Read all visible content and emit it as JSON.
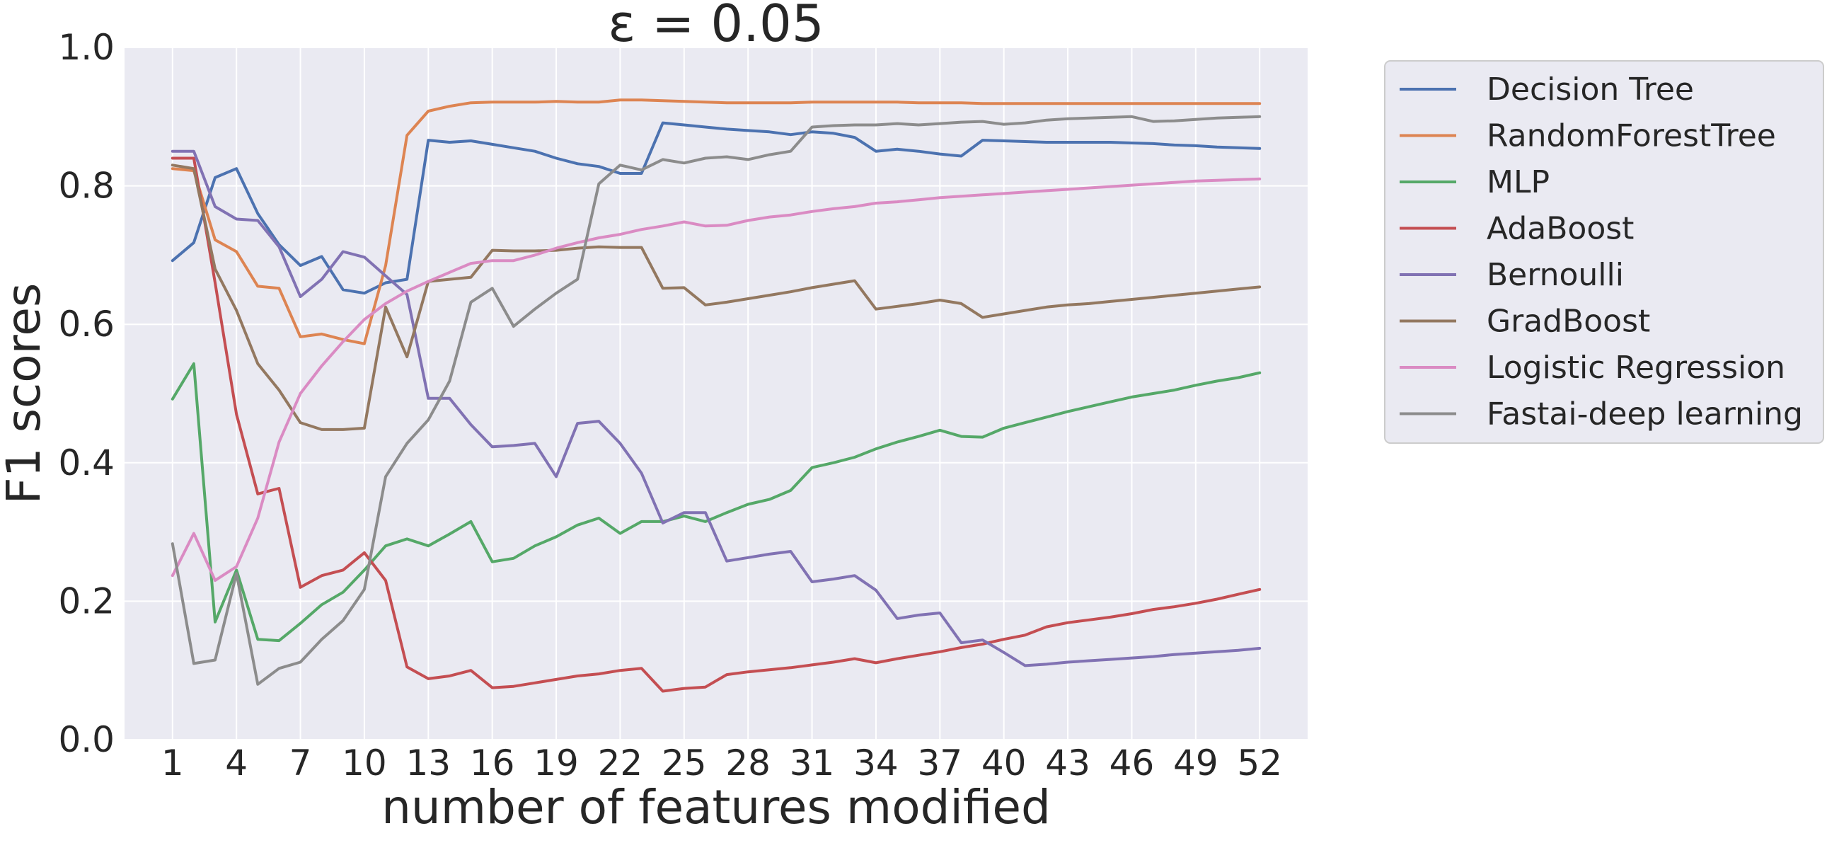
{
  "chart_data": {
    "type": "line",
    "title": "ε = 0.05",
    "xlabel": "number of features modified",
    "ylabel": "F1 scores",
    "xlim": [
      -1.25,
      54.25
    ],
    "ylim": [
      0.0,
      1.0
    ],
    "xticks": [
      1,
      4,
      7,
      10,
      13,
      16,
      19,
      22,
      25,
      28,
      31,
      34,
      37,
      40,
      43,
      46,
      49,
      52
    ],
    "xtick_labels": [
      "1",
      "4",
      "7",
      "10",
      "13",
      "16",
      "19",
      "22",
      "25",
      "28",
      "31",
      "34",
      "37",
      "40",
      "43",
      "46",
      "49",
      "52"
    ],
    "yticks": [
      0.0,
      0.2,
      0.4,
      0.6,
      0.8,
      1.0
    ],
    "ytick_labels": [
      "0.0",
      "0.2",
      "0.4",
      "0.6",
      "0.8",
      "1.0"
    ],
    "grid": true,
    "legend_position": "outside-right-top",
    "x": [
      1,
      2,
      3,
      4,
      5,
      6,
      7,
      8,
      9,
      10,
      11,
      12,
      13,
      14,
      15,
      16,
      17,
      18,
      19,
      20,
      21,
      22,
      23,
      24,
      25,
      26,
      27,
      28,
      29,
      30,
      31,
      32,
      33,
      34,
      35,
      36,
      37,
      38,
      39,
      40,
      41,
      42,
      43,
      44,
      45,
      46,
      47,
      48,
      49,
      50,
      51,
      52
    ],
    "series": [
      {
        "name": "Decision Tree",
        "color": "#4c72b0",
        "values": [
          0.692,
          0.718,
          0.812,
          0.825,
          0.76,
          0.715,
          0.685,
          0.698,
          0.65,
          0.645,
          0.66,
          0.665,
          0.866,
          0.863,
          0.865,
          0.86,
          0.855,
          0.85,
          0.84,
          0.832,
          0.828,
          0.818,
          0.818,
          0.891,
          0.888,
          0.885,
          0.882,
          0.88,
          0.878,
          0.874,
          0.878,
          0.876,
          0.87,
          0.85,
          0.853,
          0.85,
          0.846,
          0.843,
          0.866,
          0.865,
          0.864,
          0.863,
          0.863,
          0.863,
          0.863,
          0.862,
          0.861,
          0.859,
          0.858,
          0.856,
          0.855,
          0.854
        ]
      },
      {
        "name": "RandomForestTree",
        "color": "#dd8452",
        "values": [
          0.825,
          0.822,
          0.722,
          0.705,
          0.655,
          0.652,
          0.582,
          0.586,
          0.578,
          0.572,
          0.685,
          0.873,
          0.908,
          0.915,
          0.92,
          0.921,
          0.921,
          0.921,
          0.922,
          0.921,
          0.921,
          0.924,
          0.924,
          0.923,
          0.922,
          0.921,
          0.92,
          0.92,
          0.92,
          0.92,
          0.921,
          0.921,
          0.921,
          0.921,
          0.921,
          0.92,
          0.92,
          0.92,
          0.919,
          0.919,
          0.919,
          0.919,
          0.919,
          0.919,
          0.919,
          0.919,
          0.919,
          0.919,
          0.919,
          0.919,
          0.919,
          0.919
        ]
      },
      {
        "name": "MLP",
        "color": "#55a868",
        "values": [
          0.492,
          0.543,
          0.17,
          0.245,
          0.145,
          0.143,
          0.168,
          0.195,
          0.213,
          0.245,
          0.28,
          0.29,
          0.28,
          0.297,
          0.315,
          0.257,
          0.262,
          0.28,
          0.293,
          0.31,
          0.32,
          0.298,
          0.315,
          0.315,
          0.323,
          0.315,
          0.328,
          0.34,
          0.347,
          0.36,
          0.393,
          0.4,
          0.408,
          0.42,
          0.43,
          0.438,
          0.447,
          0.438,
          0.437,
          0.45,
          0.458,
          0.466,
          0.474,
          0.481,
          0.488,
          0.495,
          0.5,
          0.505,
          0.512,
          0.518,
          0.523,
          0.53
        ]
      },
      {
        "name": "AdaBoost",
        "color": "#c44e52",
        "values": [
          0.84,
          0.84,
          0.66,
          0.47,
          0.355,
          0.363,
          0.22,
          0.237,
          0.245,
          0.27,
          0.23,
          0.105,
          0.088,
          0.092,
          0.1,
          0.075,
          0.077,
          0.082,
          0.087,
          0.092,
          0.095,
          0.1,
          0.103,
          0.07,
          0.074,
          0.076,
          0.094,
          0.098,
          0.101,
          0.104,
          0.108,
          0.112,
          0.117,
          0.111,
          0.117,
          0.122,
          0.127,
          0.133,
          0.138,
          0.145,
          0.151,
          0.163,
          0.169,
          0.173,
          0.177,
          0.182,
          0.188,
          0.192,
          0.197,
          0.203,
          0.21,
          0.217
        ]
      },
      {
        "name": "Bernoulli",
        "color": "#8172b3",
        "values": [
          0.85,
          0.85,
          0.77,
          0.752,
          0.75,
          0.712,
          0.64,
          0.665,
          0.705,
          0.697,
          0.67,
          0.643,
          0.493,
          0.493,
          0.455,
          0.423,
          0.425,
          0.428,
          0.38,
          0.457,
          0.46,
          0.428,
          0.385,
          0.313,
          0.328,
          0.328,
          0.258,
          0.263,
          0.268,
          0.272,
          0.228,
          0.232,
          0.237,
          0.216,
          0.175,
          0.18,
          0.183,
          0.14,
          0.144,
          0.126,
          0.107,
          0.109,
          0.112,
          0.114,
          0.116,
          0.118,
          0.12,
          0.123,
          0.125,
          0.127,
          0.129,
          0.132
        ]
      },
      {
        "name": "GradBoost",
        "color": "#937860",
        "values": [
          0.83,
          0.825,
          0.68,
          0.62,
          0.543,
          0.505,
          0.458,
          0.448,
          0.448,
          0.45,
          0.625,
          0.553,
          0.662,
          0.665,
          0.668,
          0.707,
          0.706,
          0.706,
          0.707,
          0.71,
          0.712,
          0.711,
          0.711,
          0.652,
          0.653,
          0.628,
          0.632,
          0.637,
          0.642,
          0.647,
          0.653,
          0.658,
          0.663,
          0.622,
          0.626,
          0.63,
          0.635,
          0.63,
          0.61,
          0.615,
          0.62,
          0.625,
          0.628,
          0.63,
          0.633,
          0.636,
          0.639,
          0.642,
          0.645,
          0.648,
          0.651,
          0.654
        ]
      },
      {
        "name": "Logistic Regression",
        "color": "#da8bc3",
        "values": [
          0.237,
          0.298,
          0.23,
          0.25,
          0.32,
          0.43,
          0.5,
          0.54,
          0.575,
          0.607,
          0.63,
          0.648,
          0.662,
          0.675,
          0.688,
          0.692,
          0.692,
          0.7,
          0.71,
          0.718,
          0.725,
          0.73,
          0.737,
          0.742,
          0.748,
          0.742,
          0.743,
          0.75,
          0.755,
          0.758,
          0.763,
          0.767,
          0.77,
          0.775,
          0.777,
          0.78,
          0.783,
          0.785,
          0.787,
          0.789,
          0.791,
          0.793,
          0.795,
          0.797,
          0.799,
          0.801,
          0.803,
          0.805,
          0.807,
          0.808,
          0.809,
          0.81
        ]
      },
      {
        "name": "Fastai-deep learning",
        "color": "#8c8c8c",
        "values": [
          0.283,
          0.11,
          0.115,
          0.24,
          0.08,
          0.103,
          0.112,
          0.145,
          0.172,
          0.217,
          0.38,
          0.428,
          0.462,
          0.518,
          0.632,
          0.652,
          0.597,
          0.622,
          0.645,
          0.665,
          0.803,
          0.83,
          0.823,
          0.838,
          0.833,
          0.84,
          0.842,
          0.838,
          0.845,
          0.85,
          0.885,
          0.887,
          0.888,
          0.888,
          0.89,
          0.888,
          0.89,
          0.892,
          0.893,
          0.889,
          0.891,
          0.895,
          0.897,
          0.898,
          0.899,
          0.9,
          0.893,
          0.894,
          0.896,
          0.898,
          0.899,
          0.9
        ]
      }
    ]
  }
}
